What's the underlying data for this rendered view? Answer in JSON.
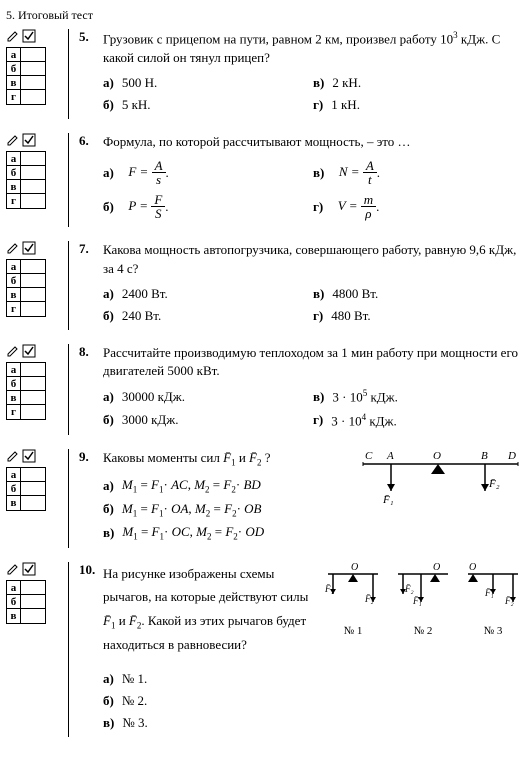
{
  "header_cut": "5. Итоговый тест",
  "checkbox_labels": [
    "а",
    "б",
    "в",
    "г"
  ],
  "questions": [
    {
      "num": "5.",
      "text_parts": [
        "Грузовик с прицепом на пути, равном 2 км, произвел работу 10",
        "3",
        " кДж. С какой силой он тянул прицеп?"
      ],
      "answers": [
        {
          "letter": "а)",
          "text": "500 Н."
        },
        {
          "letter": "в)",
          "text": "2 кН."
        },
        {
          "letter": "б)",
          "text": "5 кН."
        },
        {
          "letter": "г)",
          "text": "1 кН."
        }
      ]
    },
    {
      "num": "6.",
      "text": "Формула, по которой рассчитывают мощность, – это …",
      "formulas": [
        {
          "letter": "а)",
          "lhs": "F =",
          "num": "A",
          "den": "s",
          "suffix": "."
        },
        {
          "letter": "в)",
          "lhs": "N =",
          "num": "A",
          "den": "t",
          "suffix": "."
        },
        {
          "letter": "б)",
          "lhs": "P =",
          "num": "F",
          "den": "S",
          "suffix": "."
        },
        {
          "letter": "г)",
          "lhs": "V =",
          "num": "m",
          "den": "ρ",
          "suffix": "."
        }
      ]
    },
    {
      "num": "7.",
      "text": "Какова мощность автопогрузчика, совершающего работу, равную 9,6 кДж, за 4 с?",
      "answers": [
        {
          "letter": "а)",
          "text": "2400 Вт."
        },
        {
          "letter": "в)",
          "text": "4800 Вт."
        },
        {
          "letter": "б)",
          "text": "240 Вт."
        },
        {
          "letter": "г)",
          "text": "480 Вт."
        }
      ]
    },
    {
      "num": "8.",
      "text": "Рассчитайте производимую теплоходом за 1 мин работу при мощности его двигателей 5000 кВт.",
      "answers": [
        {
          "letter": "а)",
          "text": "30000 кДж."
        },
        {
          "letter": "в)",
          "html": "3 · 10<sup>5</sup> кДж."
        },
        {
          "letter": "б)",
          "text": "3000 кДж."
        },
        {
          "letter": "г)",
          "html": "3 · 10<sup>4</sup> кДж."
        }
      ]
    },
    {
      "num": "9.",
      "text_html": "Каковы моменты сил <i>F̄</i><sub>1</sub> и <i>F̄</i><sub>2</sub> ?",
      "answers": [
        {
          "letter": "а)",
          "html": "<i>M</i><sub>1</sub> = <i>F</i><sub>1</sub>· <i>AC</i>, <i>M</i><sub>2</sub> = <i>F</i><sub>2</sub>· <i>BD</i>"
        },
        {
          "letter": "б)",
          "html": "<i>M</i><sub>1</sub> = <i>F</i><sub>1</sub>· <i>OA</i>, <i>M</i><sub>2</sub> = <i>F</i><sub>2</sub>· <i>OB</i>"
        },
        {
          "letter": "в)",
          "html": "<i>M</i><sub>1</sub> = <i>F</i><sub>1</sub>· <i>OC</i>, <i>M</i><sub>2</sub> = <i>F</i><sub>2</sub>· <i>OD</i>"
        }
      ],
      "diagram": {
        "labels": [
          "C",
          "A",
          "O",
          "B",
          "D"
        ],
        "forces": [
          "F̄₁",
          "F̄₂"
        ]
      }
    },
    {
      "num": "10.",
      "text_html": "На рисунке изображены схемы рычагов, на которые действуют силы <i>F̄</i><sub>1</sub> и <i>F̄</i><sub>2</sub>. Какой из этих рычагов будет находиться в равновесии?",
      "answers": [
        {
          "letter": "а)",
          "text": "№ 1."
        },
        {
          "letter": "б)",
          "text": "№ 2."
        },
        {
          "letter": "в)",
          "text": "№ 3."
        }
      ],
      "levers": [
        "№ 1",
        "№ 2",
        "№ 3"
      ],
      "forces": [
        "F̄₁",
        "F̄₂"
      ]
    }
  ]
}
